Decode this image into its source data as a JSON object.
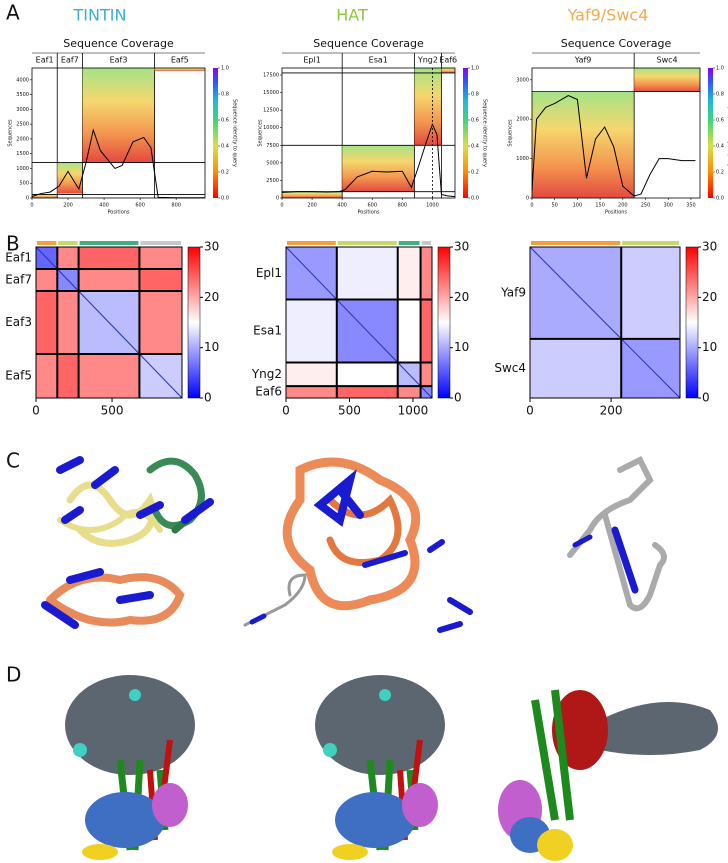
{
  "panel_labels": [
    "A",
    "B",
    "C",
    "D"
  ],
  "column_titles": [
    {
      "text": "TINTIN",
      "color": "#3aaed8"
    },
    {
      "text": "HAT",
      "color": "#8cc63f"
    },
    {
      "text": "Yaf9/Swc4",
      "color": "#f5a94a"
    }
  ],
  "chart_data": [
    {
      "type": "coverage",
      "title": "Sequence Coverage",
      "xlabel": "Positions",
      "ylabel": "Sequences",
      "colorbar_label": "Sequence identity to query",
      "xlim": [
        0,
        960
      ],
      "ylim": [
        0,
        4400
      ],
      "xticks": [
        0,
        200,
        400,
        600,
        800
      ],
      "yticks": [
        0,
        500,
        1000,
        1500,
        2000,
        2500,
        3000,
        3500,
        4000
      ],
      "cticks": [
        {
          "value": 0,
          "label": "0.0"
        },
        {
          "value": 0.2,
          "label": "0.2"
        },
        {
          "value": 0.4,
          "label": "0.4"
        },
        {
          "value": 0.6,
          "label": "0.6"
        },
        {
          "value": 0.8,
          "label": "0.8"
        },
        {
          "value": 1,
          "label": "1.0"
        }
      ],
      "domains": [
        {
          "name": "Eaf1",
          "start": 0,
          "end": 140,
          "rows": [
            0,
            120
          ]
        },
        {
          "name": "Eaf7",
          "start": 140,
          "end": 280,
          "rows": [
            150,
            1200
          ]
        },
        {
          "name": "Eaf3",
          "start": 280,
          "end": 680,
          "rows": [
            1200,
            4400
          ]
        },
        {
          "name": "Eaf5",
          "start": 680,
          "end": 960,
          "rows": [
            4300,
            4400
          ]
        }
      ],
      "hlines": [
        120,
        1200
      ],
      "coverage": {
        "color": "#000000",
        "x": [
          0,
          50,
          100,
          150,
          200,
          260,
          300,
          340,
          380,
          420,
          460,
          500,
          560,
          620,
          660,
          700,
          800,
          960
        ],
        "values": [
          50,
          150,
          200,
          400,
          900,
          300,
          1200,
          2300,
          1600,
          1300,
          1000,
          1100,
          1900,
          2050,
          1700,
          20,
          10,
          10
        ]
      }
    },
    {
      "type": "coverage",
      "title": "Sequence Coverage",
      "xlabel": "Positions",
      "ylabel": "Sequences",
      "colorbar_label": "Sequence identity to query",
      "xlim": [
        0,
        1150
      ],
      "ylim": [
        0,
        18500
      ],
      "xticks": [
        0,
        200,
        400,
        600,
        800,
        1000
      ],
      "yticks": [
        0,
        2500,
        5000,
        7500,
        10000,
        12500,
        15000,
        17500
      ],
      "cticks": [
        {
          "value": 0,
          "label": "0.0"
        },
        {
          "value": 0.2,
          "label": "0.2"
        },
        {
          "value": 0.4,
          "label": "0.4"
        },
        {
          "value": 0.6,
          "label": "0.6"
        },
        {
          "value": 0.8,
          "label": "0.8"
        },
        {
          "value": 1,
          "label": "1.0"
        }
      ],
      "domains": [
        {
          "name": "Epl1",
          "start": 0,
          "end": 400,
          "rows": [
            0,
            900
          ]
        },
        {
          "name": "Esa1",
          "start": 400,
          "end": 880,
          "rows": [
            900,
            7500
          ]
        },
        {
          "name": "Yng2",
          "start": 880,
          "end": 1060,
          "rows": [
            7500,
            18500
          ]
        },
        {
          "name": "Eaf6",
          "start": 1060,
          "end": 1150,
          "rows": [
            17800,
            18500
          ]
        }
      ],
      "hlines": [
        900,
        7500,
        17800
      ],
      "marker_x": 1000,
      "coverage": {
        "color": "#000000",
        "x": [
          0,
          100,
          200,
          300,
          380,
          420,
          500,
          600,
          700,
          800,
          860,
          900,
          960,
          1000,
          1030,
          1060,
          1100,
          1150
        ],
        "values": [
          800,
          900,
          900,
          850,
          900,
          1200,
          3000,
          3800,
          3700,
          3800,
          1500,
          4000,
          8000,
          10500,
          9000,
          500,
          300,
          200
        ]
      }
    },
    {
      "type": "coverage",
      "title": "Sequence Coverage",
      "xlabel": "Positions",
      "ylabel": "Sequences",
      "colorbar_label": "Sequence identity to query",
      "xlim": [
        0,
        370
      ],
      "ylim": [
        0,
        3300
      ],
      "xticks": [
        0,
        50,
        100,
        150,
        200,
        250,
        300,
        350
      ],
      "yticks": [
        0,
        1000,
        2000,
        3000
      ],
      "cticks": [
        {
          "value": 0,
          "label": "0.0"
        },
        {
          "value": 0.2,
          "label": "0.2"
        },
        {
          "value": 0.4,
          "label": "0.4"
        },
        {
          "value": 0.6,
          "label": "0.6"
        },
        {
          "value": 0.8,
          "label": "0.8"
        },
        {
          "value": 1,
          "label": "1.0"
        }
      ],
      "domains": [
        {
          "name": "Yaf9",
          "start": 0,
          "end": 225,
          "rows": [
            0,
            2700
          ]
        },
        {
          "name": "Swc4",
          "start": 225,
          "end": 370,
          "rows": [
            2700,
            3300
          ]
        }
      ],
      "hlines": [
        2700
      ],
      "coverage": {
        "color": "#000000",
        "x": [
          0,
          10,
          30,
          50,
          80,
          100,
          120,
          140,
          160,
          180,
          200,
          225,
          240,
          260,
          280,
          300,
          330,
          360
        ],
        "values": [
          200,
          2000,
          2300,
          2400,
          2600,
          2500,
          500,
          1500,
          1800,
          1300,
          300,
          50,
          100,
          600,
          1000,
          1000,
          950,
          950
        ]
      }
    },
    {
      "type": "heatmap",
      "xlim": [
        0,
        960
      ],
      "xticks": [
        0,
        500
      ],
      "clim": [
        0,
        30
      ],
      "cticks": [
        0,
        10,
        20,
        30
      ],
      "domains": [
        {
          "name": "Eaf1",
          "start": 0,
          "end": 140
        },
        {
          "name": "Eaf7",
          "start": 140,
          "end": 280
        },
        {
          "name": "Eaf3",
          "start": 280,
          "end": 680
        },
        {
          "name": "Eaf5",
          "start": 680,
          "end": 960
        }
      ],
      "block_values": [
        [
          6,
          22,
          24,
          22
        ],
        [
          22,
          8,
          22,
          24
        ],
        [
          24,
          22,
          11,
          22
        ],
        [
          22,
          24,
          22,
          12
        ]
      ]
    },
    {
      "type": "heatmap",
      "xlim": [
        0,
        1150
      ],
      "xticks": [
        0,
        500,
        1000
      ],
      "clim": [
        0,
        30
      ],
      "cticks": [
        0,
        10,
        20,
        30
      ],
      "domains": [
        {
          "name": "Epl1",
          "start": 0,
          "end": 400
        },
        {
          "name": "Esa1",
          "start": 400,
          "end": 880
        },
        {
          "name": "Yng2",
          "start": 880,
          "end": 1060
        },
        {
          "name": "Eaf6",
          "start": 1060,
          "end": 1150
        }
      ],
      "block_values": [
        [
          9,
          14,
          16,
          22
        ],
        [
          14,
          8,
          15,
          24
        ],
        [
          16,
          15,
          11,
          22
        ],
        [
          22,
          24,
          22,
          8
        ]
      ]
    },
    {
      "type": "heatmap",
      "xlim": [
        0,
        370
      ],
      "xticks": [
        0,
        200
      ],
      "clim": [
        0,
        30
      ],
      "cticks": [
        0,
        10,
        20,
        30
      ],
      "domains": [
        {
          "name": "Yaf9",
          "start": 0,
          "end": 225
        },
        {
          "name": "Swc4",
          "start": 225,
          "end": 370
        }
      ],
      "block_values": [
        [
          10,
          12
        ],
        [
          12,
          9
        ]
      ]
    }
  ]
}
